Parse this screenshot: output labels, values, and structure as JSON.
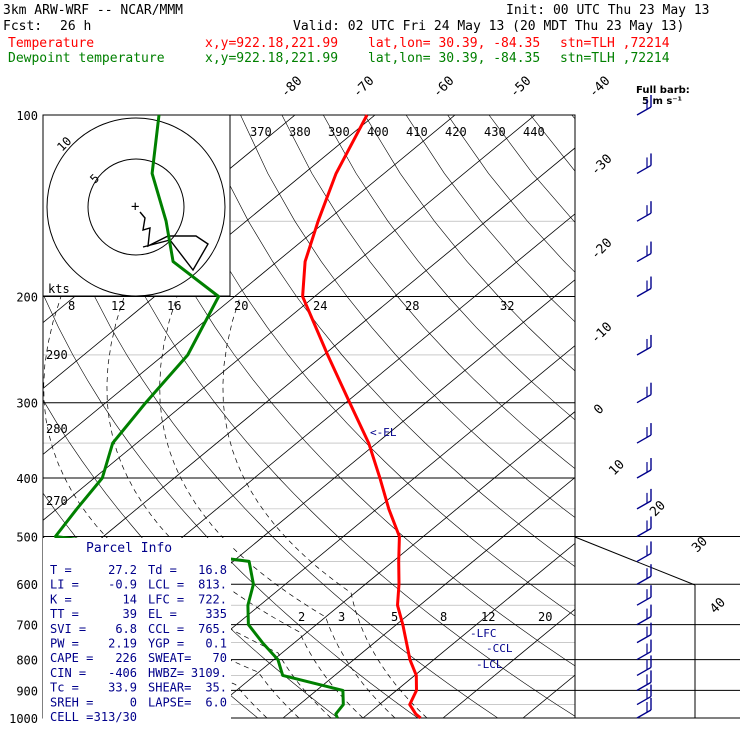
{
  "header": {
    "model": "3km ARW-WRF -- NCAR/MMM",
    "init": "Init: 00 UTC Thu 23 May 13",
    "fcst_label": "Fcst:",
    "fcst_value": "26 h",
    "valid": "Valid: 02 UTC Fri 24 May 13 (20 MDT Thu 23 May 13)"
  },
  "series_legend": [
    {
      "name": "Temperature",
      "xy": "x,y=922.18,221.99",
      "latlon": "lat,lon= 30.39, -84.35",
      "stn": "stn=TLH ,72214",
      "color": "#ff0000"
    },
    {
      "name": "Dewpoint temperature",
      "xy": "x,y=922.18,221.99",
      "latlon": "lat,lon= 30.39, -84.35",
      "stn": "stn=TLH ,72214",
      "color": "#008000"
    }
  ],
  "barb_note": [
    "Full barb:",
    "5 m s⁻¹"
  ],
  "el_label": "<-EL",
  "lfc_label": "-LFC",
  "ccl_label": "-CCL",
  "lcl_label": "-LCL",
  "hodo_units": "kts",
  "parcel": {
    "title": "Parcel Info",
    "rows": [
      [
        "T    =",
        "27.2",
        "Td  =",
        "16.8"
      ],
      [
        "LI   =",
        "-0.9",
        "LCL =",
        "813."
      ],
      [
        "K    =",
        "14",
        "LFC =",
        "722."
      ],
      [
        "TT   =",
        "39",
        "EL  =",
        "335"
      ],
      [
        "SVI  =",
        "6.8",
        "CCL =",
        "765."
      ],
      [
        "PW   =",
        "2.19",
        "YGP =",
        "0.1"
      ],
      [
        "CAPE =",
        "226",
        "SWEAT=",
        "70"
      ],
      [
        "CIN  =",
        "-406",
        "HWBZ=",
        "3109."
      ],
      [
        "Tc   =",
        "33.9",
        "SHEAR=",
        "35."
      ],
      [
        "SREH =",
        "0",
        "LAPSE=",
        "6.0"
      ],
      [
        "CELL =",
        "313/30",
        "",
        ""
      ]
    ]
  },
  "chart_data": {
    "type": "line",
    "title": "",
    "y_axis": {
      "label": "",
      "scale": "log",
      "ylim": [
        1000,
        100
      ],
      "ticks": [
        100,
        200,
        300,
        400,
        500,
        600,
        700,
        800,
        900,
        1000
      ]
    },
    "isotherm_labels": [
      -80,
      -70,
      -60,
      -50,
      -40,
      -30,
      -20,
      -10,
      0,
      10,
      20,
      30,
      40
    ],
    "theta_e_labels": [
      370,
      380,
      390,
      400,
      410,
      420,
      430,
      440
    ],
    "dry_adiabat_labels": [
      290,
      280,
      270
    ],
    "mixing_ratio_labels": [
      2,
      3,
      5,
      8,
      12,
      20
    ],
    "hodograph_ring_labels": [
      5,
      10
    ],
    "hodograph_speed_labels": [
      8,
      12,
      16,
      20,
      24,
      28,
      32
    ],
    "series": [
      {
        "name": "Temperature",
        "color": "#ff0000",
        "points": [
          {
            "p": 1000,
            "t": 27.2
          },
          {
            "p": 985,
            "t": 26.0
          },
          {
            "p": 950,
            "t": 23.8
          },
          {
            "p": 900,
            "t": 22.5
          },
          {
            "p": 850,
            "t": 20.2
          },
          {
            "p": 800,
            "t": 17.0
          },
          {
            "p": 750,
            "t": 14.0
          },
          {
            "p": 700,
            "t": 10.8
          },
          {
            "p": 650,
            "t": 7.2
          },
          {
            "p": 600,
            "t": 4.2
          },
          {
            "p": 550,
            "t": 0.7
          },
          {
            "p": 500,
            "t": -3.0
          },
          {
            "p": 450,
            "t": -8.5
          },
          {
            "p": 400,
            "t": -14.3
          },
          {
            "p": 350,
            "t": -21.0
          },
          {
            "p": 300,
            "t": -29.5
          },
          {
            "p": 250,
            "t": -39.5
          },
          {
            "p": 200,
            "t": -51.5
          },
          {
            "p": 175,
            "t": -56.5
          },
          {
            "p": 150,
            "t": -61.0
          },
          {
            "p": 125,
            "t": -66.0
          },
          {
            "p": 100,
            "t": -71.0
          }
        ]
      },
      {
        "name": "Dewpoint temperature",
        "color": "#008000",
        "points": [
          {
            "p": 1000,
            "t": 16.8
          },
          {
            "p": 985,
            "t": 16.0
          },
          {
            "p": 950,
            "t": 15.5
          },
          {
            "p": 900,
            "t": 13.3
          },
          {
            "p": 850,
            "t": 3.5
          },
          {
            "p": 800,
            "t": 0.5
          },
          {
            "p": 750,
            "t": -4.0
          },
          {
            "p": 700,
            "t": -8.5
          },
          {
            "p": 650,
            "t": -11.5
          },
          {
            "p": 600,
            "t": -14.0
          },
          {
            "p": 550,
            "t": -18.0
          },
          {
            "p": 500,
            "t": -46.0
          },
          {
            "p": 450,
            "t": -47.5
          },
          {
            "p": 400,
            "t": -49.0
          },
          {
            "p": 350,
            "t": -53.0
          },
          {
            "p": 300,
            "t": -55.0
          },
          {
            "p": 250,
            "t": -57.0
          },
          {
            "p": 200,
            "t": -62.0
          },
          {
            "p": 175,
            "t": -73.0
          },
          {
            "p": 150,
            "t": -80.0
          },
          {
            "p": 125,
            "t": -89.0
          },
          {
            "p": 100,
            "t": -97.0
          }
        ]
      }
    ],
    "wind_barbs": {
      "unit": "m s-1",
      "levels": [
        1000,
        950,
        900,
        850,
        800,
        750,
        700,
        650,
        600,
        550,
        500,
        450,
        400,
        350,
        300,
        250,
        200,
        175,
        150,
        125,
        100
      ]
    }
  }
}
